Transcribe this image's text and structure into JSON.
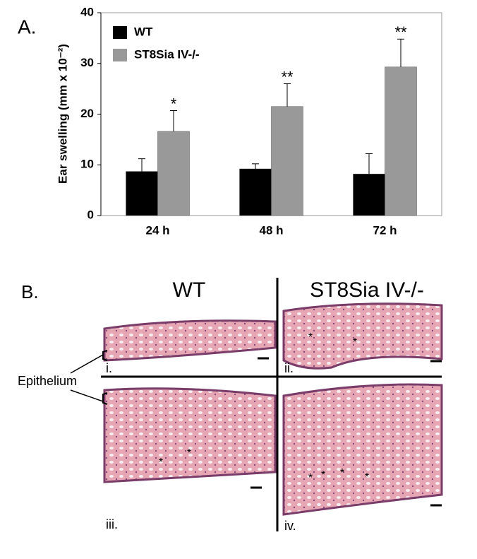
{
  "chart_data": {
    "type": "bar",
    "panel_label": "A.",
    "ylabel": "Ear swelling (mm x 10⁻²)",
    "categories": [
      "24 h",
      "48 h",
      "72 h"
    ],
    "series": [
      {
        "name": "WT",
        "color": "#000000",
        "values": [
          8.7,
          9.2,
          8.2
        ],
        "errors": [
          2.5,
          1.0,
          4.0
        ]
      },
      {
        "name": "ST8Sia IV-/-",
        "color": "#999999",
        "values": [
          16.6,
          21.5,
          29.3
        ],
        "errors": [
          4.1,
          4.5,
          5.5
        ]
      }
    ],
    "annotations": [
      "*",
      "**",
      "**"
    ],
    "ylim": [
      0,
      40
    ],
    "yticks": [
      0,
      10,
      20,
      30,
      40
    ],
    "grid": false,
    "legend": "upper left"
  },
  "panel_b": {
    "panel_label": "B.",
    "columns": [
      "WT",
      "ST8Sia IV-/-"
    ],
    "callout": "Epithelium",
    "image_labels": [
      "i.",
      "ii.",
      "iii.",
      "iv."
    ],
    "asterisks": [
      [],
      [
        "*",
        "*"
      ],
      [
        "*",
        "*"
      ],
      [
        "*",
        "*",
        "*",
        "*"
      ]
    ]
  }
}
